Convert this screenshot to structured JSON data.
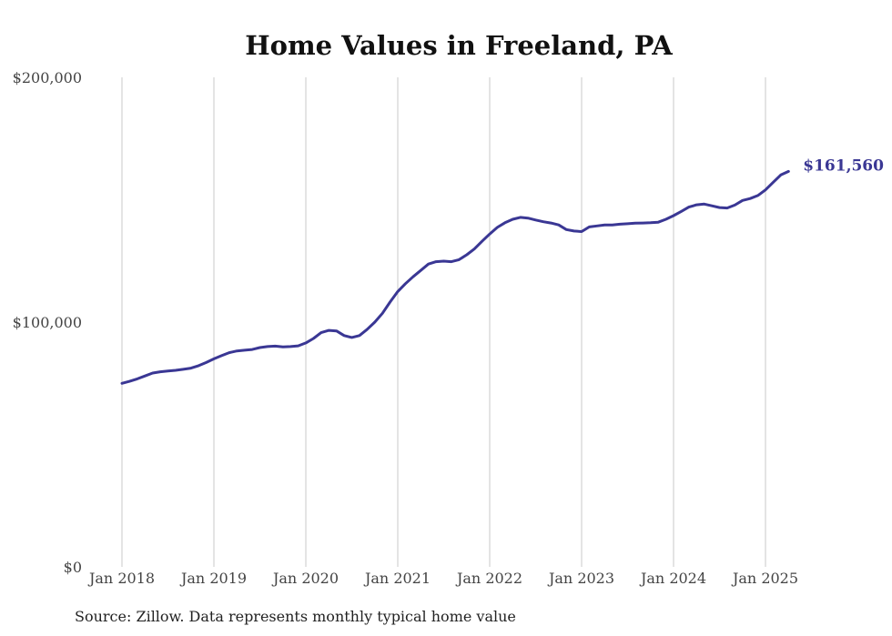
{
  "chart_data": {
    "type": "line",
    "title": "Home Values in Freeland, PA",
    "xlabel": "",
    "ylabel": "",
    "ylim": [
      0,
      200000
    ],
    "y_ticks": [
      {
        "value": 0,
        "label": "$0"
      },
      {
        "value": 100000,
        "label": "$100,000"
      },
      {
        "value": 200000,
        "label": "$200,000"
      }
    ],
    "x_ticks": [
      {
        "value": "2018-01",
        "label": "Jan 2018"
      },
      {
        "value": "2019-01",
        "label": "Jan 2019"
      },
      {
        "value": "2020-01",
        "label": "Jan 2020"
      },
      {
        "value": "2021-01",
        "label": "Jan 2021"
      },
      {
        "value": "2022-01",
        "label": "Jan 2022"
      },
      {
        "value": "2023-01",
        "label": "Jan 2023"
      },
      {
        "value": "2024-01",
        "label": "Jan 2024"
      },
      {
        "value": "2025-01",
        "label": "Jan 2025"
      }
    ],
    "grid": "vertical",
    "line_color": "#3a3794",
    "end_label": "$161,560",
    "series": [
      {
        "x": [
          "2018-01",
          "2018-02",
          "2018-03",
          "2018-04",
          "2018-05",
          "2018-06",
          "2018-07",
          "2018-08",
          "2018-09",
          "2018-10",
          "2018-11",
          "2018-12",
          "2019-01",
          "2019-02",
          "2019-03",
          "2019-04",
          "2019-05",
          "2019-06",
          "2019-07",
          "2019-08",
          "2019-09",
          "2019-10",
          "2019-11",
          "2019-12",
          "2020-01",
          "2020-02",
          "2020-03",
          "2020-04",
          "2020-05",
          "2020-06",
          "2020-07",
          "2020-08",
          "2020-09",
          "2020-10",
          "2020-11",
          "2020-12",
          "2021-01",
          "2021-02",
          "2021-03",
          "2021-04",
          "2021-05",
          "2021-06",
          "2021-07",
          "2021-08",
          "2021-09",
          "2021-10",
          "2021-11",
          "2021-12",
          "2022-01",
          "2022-02",
          "2022-03",
          "2022-04",
          "2022-05",
          "2022-06",
          "2022-07",
          "2022-08",
          "2022-09",
          "2022-10",
          "2022-11",
          "2022-12",
          "2023-01",
          "2023-02",
          "2023-03",
          "2023-04",
          "2023-05",
          "2023-06",
          "2023-07",
          "2023-08",
          "2023-09",
          "2023-10",
          "2023-11",
          "2023-12",
          "2024-01",
          "2024-02",
          "2024-03",
          "2024-04",
          "2024-05",
          "2024-06",
          "2024-07",
          "2024-08",
          "2024-09",
          "2024-10",
          "2024-11",
          "2024-12",
          "2025-01",
          "2025-02",
          "2025-03",
          "2025-04"
        ],
        "values": [
          75000,
          75800,
          76800,
          78000,
          79200,
          79700,
          80000,
          80300,
          80700,
          81200,
          82200,
          83500,
          85000,
          86300,
          87500,
          88200,
          88500,
          88800,
          89600,
          90000,
          90200,
          89900,
          90000,
          90300,
          91500,
          93300,
          95700,
          96600,
          96400,
          94500,
          93700,
          94500,
          97000,
          100000,
          103600,
          108200,
          112500,
          115700,
          118500,
          121100,
          123700,
          124700,
          124900,
          124700,
          125500,
          127500,
          129900,
          133000,
          136000,
          138700,
          140600,
          142000,
          142800,
          142500,
          141700,
          141000,
          140500,
          139700,
          137800,
          137200,
          137000,
          138900,
          139300,
          139700,
          139700,
          140000,
          140200,
          140400,
          140500,
          140600,
          140800,
          142000,
          143500,
          145200,
          147000,
          147900,
          148200,
          147500,
          146800,
          146600,
          147800,
          149700,
          150500,
          151700,
          154000,
          157100,
          160100,
          161560
        ]
      }
    ]
  },
  "source": "Source: Zillow. Data represents monthly typical home value"
}
